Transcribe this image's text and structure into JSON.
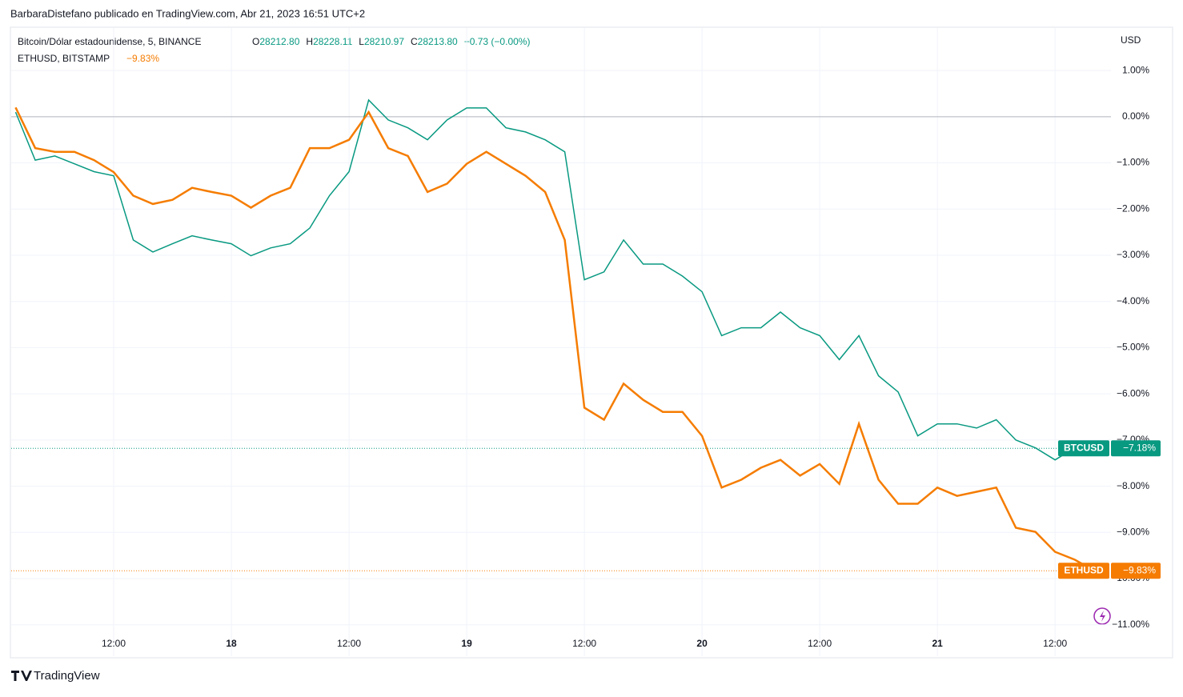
{
  "header": {
    "text": "BarbaraDistefano publicado en TradingView.com, Abr 21, 2023 16:51 UTC+2"
  },
  "legend": {
    "btc_title": "Bitcoin/Dólar estadounidense, 5, BINANCE",
    "ohlc": [
      {
        "key": "O",
        "text": "28212.80"
      },
      {
        "key": "H",
        "text": "28228.11"
      },
      {
        "key": "L",
        "text": "28210.97"
      },
      {
        "key": "C",
        "text": "28213.80"
      }
    ],
    "btc_change": "−0.73 (−0.00%)",
    "eth_title": "ETHUSD, BITSTAMP",
    "eth_change": "−9.83%"
  },
  "footer": {
    "brand": "TradingView"
  },
  "chart_data": {
    "type": "line",
    "y_unit": "USD",
    "x": [
      -22,
      -20,
      -18,
      -16,
      -14,
      -12,
      -10,
      -8,
      -6,
      -4,
      -2,
      0,
      2,
      4,
      6,
      8,
      10,
      12,
      14,
      16,
      18,
      20,
      22,
      24,
      26,
      28,
      30,
      32,
      34,
      36,
      38,
      40,
      42,
      44,
      46,
      48,
      50,
      52,
      54,
      56,
      58,
      60,
      62,
      64,
      66,
      68,
      70,
      72,
      74,
      76,
      78,
      80,
      82,
      84,
      86,
      88
    ],
    "xlim": [
      -22.45,
      89.7
    ],
    "xticks": [
      {
        "value": -12,
        "label": "12:00"
      },
      {
        "value": 0,
        "label": "18"
      },
      {
        "value": 12,
        "label": "12:00"
      },
      {
        "value": 24,
        "label": "19"
      },
      {
        "value": 36,
        "label": "12:00"
      },
      {
        "value": 48,
        "label": "20"
      },
      {
        "value": 60,
        "label": "12:00"
      },
      {
        "value": 72,
        "label": "21"
      },
      {
        "value": 84,
        "label": "12:00"
      }
    ],
    "ylim": [
      -11.68,
      1.92
    ],
    "yticks": [
      {
        "value": 1,
        "label": "1.00%"
      },
      {
        "value": 0,
        "label": "0.00%"
      },
      {
        "value": -1,
        "label": "−1.00%"
      },
      {
        "value": -2,
        "label": "−2.00%"
      },
      {
        "value": -3,
        "label": "−3.00%"
      },
      {
        "value": -4,
        "label": "−4.00%"
      },
      {
        "value": -5,
        "label": "−5.00%"
      },
      {
        "value": -6,
        "label": "−6.00%"
      },
      {
        "value": -7,
        "label": "−7.00%"
      },
      {
        "value": -8,
        "label": "−8.00%"
      },
      {
        "value": -9,
        "label": "−9.00%"
      },
      {
        "value": -10,
        "label": "−10.00%"
      },
      {
        "value": -11,
        "label": "−11.00%"
      }
    ],
    "grid": true,
    "series": [
      {
        "name": "BTCUSD",
        "color": "#089981",
        "last_label": "−7.18%",
        "values": [
          0.1,
          -0.94,
          -0.85,
          -1.02,
          -1.19,
          -1.28,
          -2.67,
          -2.93,
          -2.75,
          -2.58,
          -2.67,
          -2.75,
          -3.01,
          -2.84,
          -2.75,
          -2.41,
          -1.71,
          -1.19,
          0.36,
          -0.07,
          -0.24,
          -0.5,
          -0.07,
          0.19,
          0.19,
          -0.24,
          -0.33,
          -0.5,
          -0.76,
          -3.53,
          -3.36,
          -2.67,
          -3.19,
          -3.19,
          -3.45,
          -3.79,
          -4.74,
          -4.57,
          -4.57,
          -4.23,
          -4.57,
          -4.74,
          -5.26,
          -4.74,
          -5.61,
          -5.96,
          -6.91,
          -6.65,
          -6.65,
          -6.74,
          -6.56,
          -7.0,
          -7.17,
          -7.43,
          -7.17,
          -7.18
        ]
      },
      {
        "name": "ETHUSD",
        "color": "#f57c00",
        "last_label": "−9.83%",
        "values": [
          0.2,
          -0.68,
          -0.76,
          -0.76,
          -0.94,
          -1.2,
          -1.71,
          -1.89,
          -1.8,
          -1.54,
          -1.63,
          -1.71,
          -1.97,
          -1.71,
          -1.54,
          -0.68,
          -0.68,
          -0.5,
          0.1,
          -0.68,
          -0.85,
          -1.63,
          -1.45,
          -1.02,
          -0.76,
          -1.02,
          -1.28,
          -1.63,
          -2.67,
          -6.3,
          -6.56,
          -5.78,
          -6.13,
          -6.39,
          -6.39,
          -6.91,
          -8.03,
          -7.86,
          -7.6,
          -7.43,
          -7.77,
          -7.52,
          -7.95,
          -6.65,
          -7.86,
          -8.38,
          -8.38,
          -8.03,
          -8.21,
          -8.12,
          -8.03,
          -8.9,
          -8.99,
          -9.42,
          -9.59,
          -9.83
        ]
      }
    ]
  }
}
